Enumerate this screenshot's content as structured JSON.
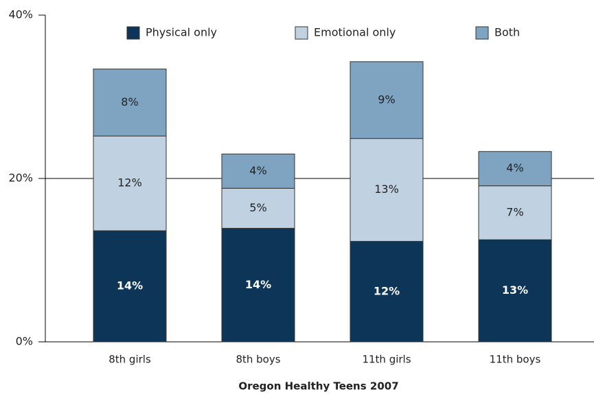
{
  "chart_data": {
    "type": "stacked_bar",
    "x_label": "Oregon Healthy Teens 2007",
    "categories": [
      "8th girls",
      "8th boys",
      "11th girls",
      "11th boys"
    ],
    "series": [
      {
        "name": "Physical only",
        "color": "#0d3557",
        "values": [
          13.6,
          13.9,
          12.3,
          12.5
        ],
        "value_labels": [
          "14%",
          "14%",
          "12%",
          "13%"
        ]
      },
      {
        "name": "Emotional only",
        "color": "#c0d1e1",
        "values": [
          11.6,
          4.9,
          12.6,
          6.6
        ],
        "value_labels": [
          "12%",
          "5%",
          "13%",
          "7%"
        ]
      },
      {
        "name": "Both",
        "color": "#7ea4c1",
        "values": [
          8.2,
          4.2,
          9.4,
          4.2
        ],
        "value_labels": [
          "8%",
          "4%",
          "9%",
          "4%"
        ]
      }
    ],
    "ylim": [
      0,
      40
    ],
    "yticks": [
      {
        "value": 0,
        "label": "0%"
      },
      {
        "value": 20,
        "label": "20%"
      },
      {
        "value": 40,
        "label": "40%"
      }
    ],
    "grid": true,
    "legend": "top"
  }
}
